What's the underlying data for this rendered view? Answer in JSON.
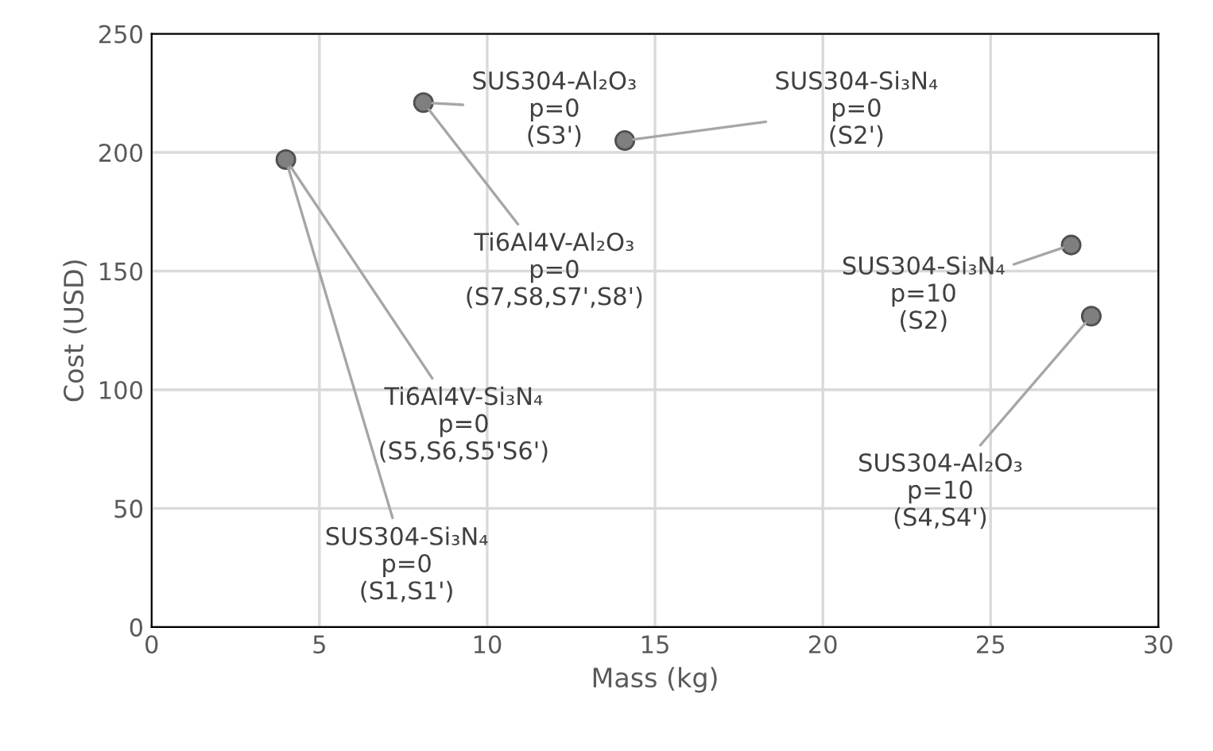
{
  "chart_data": {
    "type": "scatter",
    "xlabel": "Mass (kg)",
    "ylabel": "Cost (USD)",
    "series": [
      {
        "color": "#7f7f7f",
        "x": [
          4,
          8.1,
          14.1,
          27.4,
          28
        ],
        "values": [
          197,
          221,
          205,
          161,
          131
        ]
      }
    ],
    "xlim": [
      0,
      30
    ],
    "ylim": [
      0,
      250
    ],
    "xticks": [
      0,
      5,
      10,
      15,
      20,
      25,
      30
    ],
    "yticks": [
      0,
      50,
      100,
      150,
      200,
      250
    ],
    "grid": true,
    "marker": "circle",
    "annotations": [
      {
        "text": "SUS304-Al₂O₃\np=0\n(S3')",
        "x": 8.1,
        "y": 221
      },
      {
        "text": "SUS304-Si₃N₄\np=0\n(S2')",
        "x": 14.1,
        "y": 205
      },
      {
        "text": "Ti6Al4V-Al₂O₃\np=0\n(S7,S8,S7',S8')",
        "x": 8.1,
        "y": 221
      },
      {
        "text": "SUS304-Si₃N₄\np=10\n(S2)",
        "x": 27.4,
        "y": 161
      },
      {
        "text": "Ti6Al4V-Si₃N₄\np=0\n(S5,S6,S5'S6')",
        "x": 4,
        "y": 197
      },
      {
        "text": "SUS304-Al₂O₃\np=10\n(S4,S4')",
        "x": 28,
        "y": 131
      },
      {
        "text": "SUS304-Si₃N₄\np=0\n(S1,S1')",
        "x": 4,
        "y": 197
      }
    ]
  }
}
